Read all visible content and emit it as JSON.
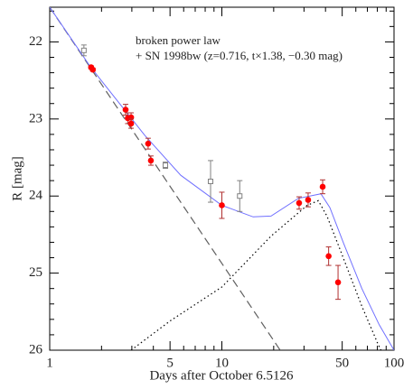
{
  "chart_data": {
    "type": "scatter",
    "xlabel": "Days after October 6.5126",
    "ylabel": "R [mag]",
    "annotations": [
      "broken power law",
      "+ SN 1998bw (z=0.716, t×1.38, −0.30 mag)"
    ],
    "xscale": "log",
    "xlim": [
      1,
      100
    ],
    "ylim": [
      26,
      21.55
    ],
    "xticks": [
      1,
      5,
      10,
      50,
      100
    ],
    "xminorticks": [
      2,
      3,
      4,
      6,
      7,
      8,
      9,
      20,
      30,
      40,
      60,
      70,
      80,
      90
    ],
    "yticks": [
      22,
      23,
      24,
      25,
      26
    ],
    "yminorticks": [
      21.6,
      21.8,
      22.2,
      22.4,
      22.6,
      22.8,
      23.2,
      23.4,
      23.6,
      23.8,
      24.2,
      24.4,
      24.6,
      24.8,
      25.2,
      25.4,
      25.6,
      25.8
    ],
    "series": [
      {
        "marker": "filled-circle",
        "color": "#ff0000",
        "errcolor": "#b03030",
        "x": [
          1.74,
          1.78,
          2.76,
          2.84,
          2.97,
          2.97,
          3.73,
          3.87,
          10,
          28.1,
          31.7,
          38.5,
          41.7,
          47.3
        ],
        "values": [
          22.33,
          22.36,
          22.88,
          22.99,
          22.98,
          23.06,
          23.32,
          23.54,
          24.12,
          24.09,
          24.05,
          23.88,
          24.78,
          25.12
        ],
        "errors": [
          0.02,
          0.02,
          0.07,
          0.07,
          0.06,
          0.06,
          0.07,
          0.06,
          0.17,
          0.08,
          0.09,
          0.09,
          0.12,
          0.22
        ]
      },
      {
        "marker": "open-square",
        "color": "#808080",
        "errcolor": "#808080",
        "x": [
          1.58,
          4.7,
          8.6,
          12.7
        ],
        "values": [
          22.11,
          23.6,
          23.81,
          24.0
        ],
        "errors": [
          0.07,
          0.04,
          0.27,
          0.2
        ]
      }
    ],
    "lines": [
      {
        "style": "dashed",
        "color": "#606060",
        "x": [
          1,
          21.8
        ],
        "values": [
          21.55,
          26
        ]
      },
      {
        "style": "dotted",
        "color": "#000000",
        "x": [
          2.97,
          5,
          10,
          19.3,
          31.3,
          36.3,
          40.8,
          48.9,
          65,
          80,
          84
        ],
        "values": [
          26,
          25.62,
          25.18,
          24.52,
          24.12,
          24.06,
          24.26,
          24.71,
          25.43,
          25.9,
          26
        ]
      },
      {
        "style": "solid",
        "color": "#7070ff",
        "x": [
          1,
          1.72,
          3.56,
          5.77,
          10,
          15.2,
          19.3,
          27.8,
          37.6,
          42.4,
          50.9,
          65,
          82,
          100
        ],
        "values": [
          21.55,
          22.32,
          23.21,
          23.73,
          24.12,
          24.27,
          24.26,
          24.03,
          23.97,
          24.15,
          24.61,
          25.2,
          25.67,
          26
        ]
      }
    ]
  }
}
